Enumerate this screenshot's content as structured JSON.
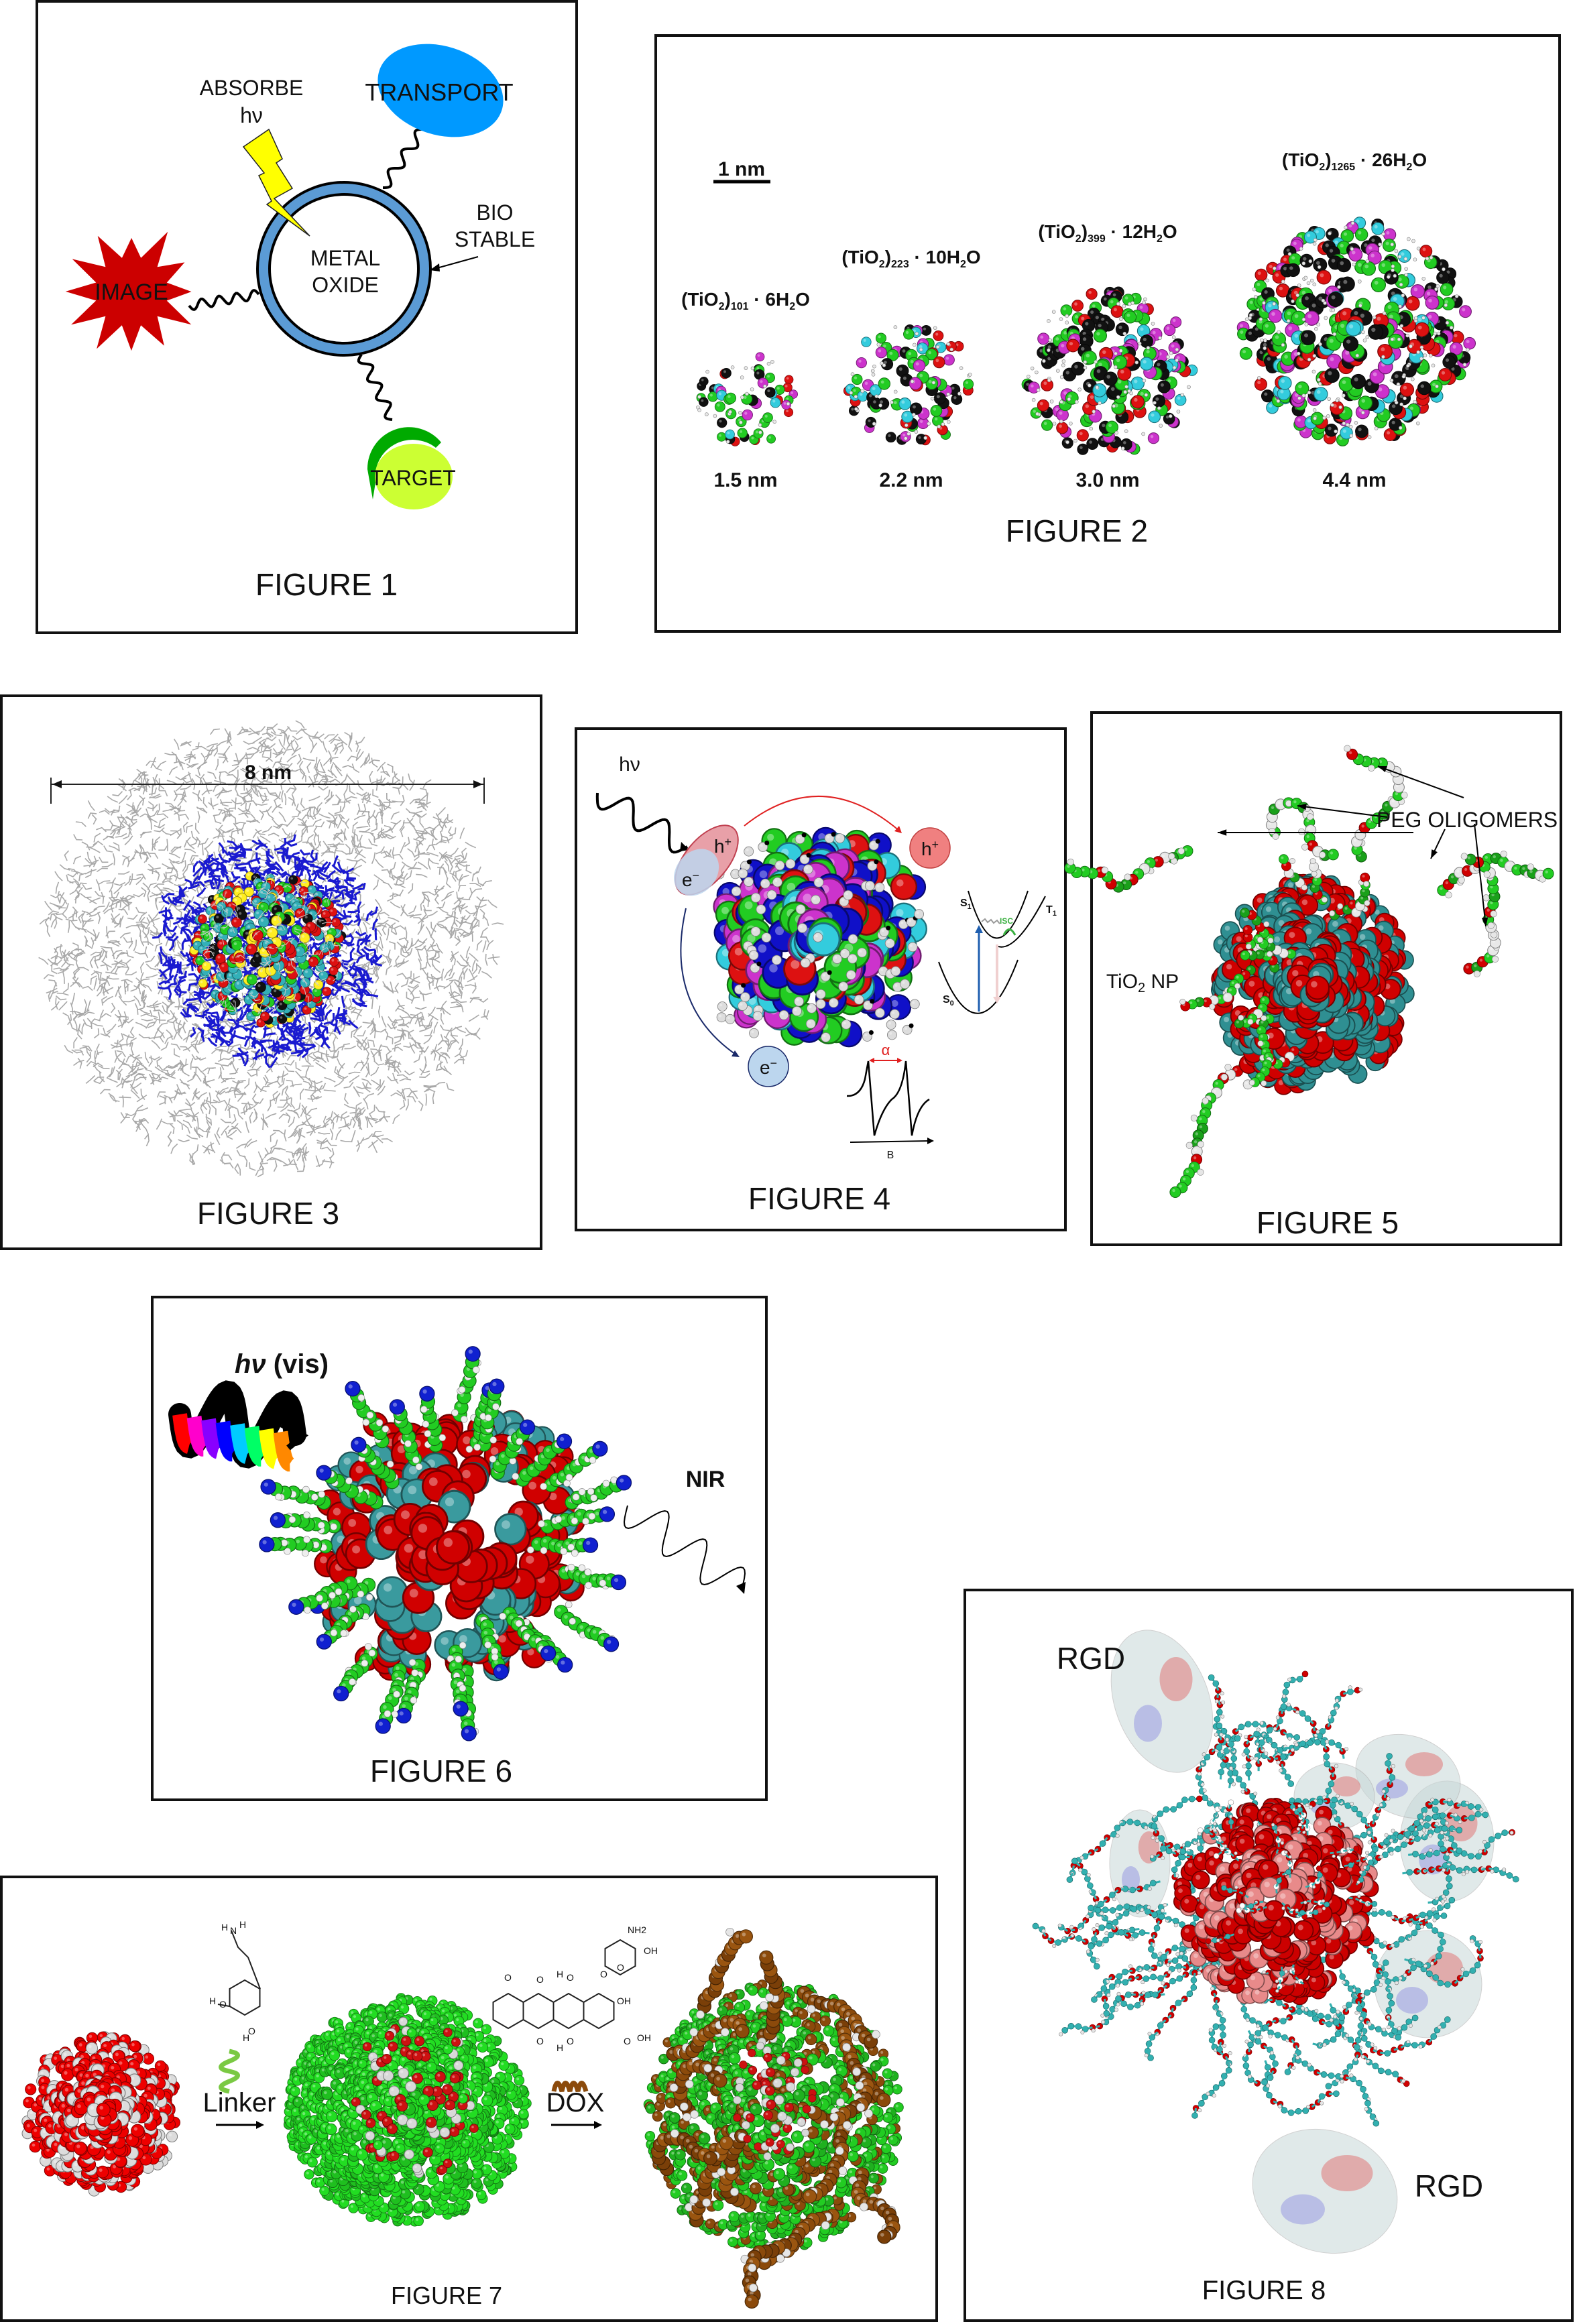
{
  "figure1": {
    "caption": "FIGURE 1",
    "absorbe": "ABSORBE",
    "hv": "hν",
    "transport": "TRANSPORT",
    "bio": "BIO",
    "stable": "STABLE",
    "metal": "METAL",
    "oxide": "OXIDE",
    "image": "IMAGE",
    "target": "TARGET",
    "colors": {
      "ring": "#5b9bd5",
      "transport": "#0099ff",
      "image": "#cc0000",
      "bolt": "#ffff00",
      "target": "#ccff33",
      "target_cup": "#00aa00"
    }
  },
  "figure2": {
    "caption": "FIGURE 2",
    "scale_label": "1 nm",
    "clusters": [
      {
        "a": "(TiO",
        "s1": "2",
        "b": ")",
        "s2": "101",
        "c": " · 6H",
        "s3": "2",
        "d": "O",
        "size": "1.5 nm"
      },
      {
        "a": "(TiO",
        "s1": "2",
        "b": ")",
        "s2": "223",
        "c": " · 10H",
        "s3": "2",
        "d": "O",
        "size": "2.2 nm"
      },
      {
        "a": "(TiO",
        "s1": "2",
        "b": ")",
        "s2": "399",
        "c": " · 12H",
        "s3": "2",
        "d": "O",
        "size": "3.0 nm"
      },
      {
        "a": "(TiO",
        "s1": "2",
        "b": ")",
        "s2": "1265",
        "c": " · 26H",
        "s3": "2",
        "d": "O",
        "size": "4.4 nm"
      }
    ]
  },
  "figure3": {
    "caption": "FIGURE 3",
    "dimension": "8 nm"
  },
  "figure4": {
    "caption": "FIGURE 4",
    "hv": "hν",
    "hole": "h",
    "plus": "+",
    "electron": "e",
    "minus": "−",
    "s1": "S",
    "s1_sub": "1",
    "t1": "T",
    "t1_sub": "1",
    "s0": "S",
    "s0_sub": "0",
    "isc": "ISC",
    "alpha": "α",
    "b_axis": "B"
  },
  "figure5": {
    "caption": "FIGURE 5",
    "peg": "PEG OLIGOMERS",
    "np_a": "TiO",
    "np_sub": "2",
    "np_b": " NP"
  },
  "figure6": {
    "caption": "FIGURE 6",
    "hv": "hν",
    "vis": " (vis)",
    "nir": "NIR"
  },
  "figure7": {
    "caption": "FIGURE 7",
    "linker": "Linker",
    "dox": "DOX",
    "linker_atoms": [
      "H",
      "N",
      "H",
      "H",
      "O",
      "H",
      "O"
    ],
    "dox_atoms": [
      "O",
      "O",
      "H",
      "O",
      "O",
      "O",
      "OH",
      "O",
      "OH",
      "O",
      "H",
      "O",
      "NH2",
      "OH"
    ]
  },
  "figure8": {
    "caption": "FIGURE 8",
    "rgd_top": "RGD",
    "rgd_bottom": "RGD"
  }
}
